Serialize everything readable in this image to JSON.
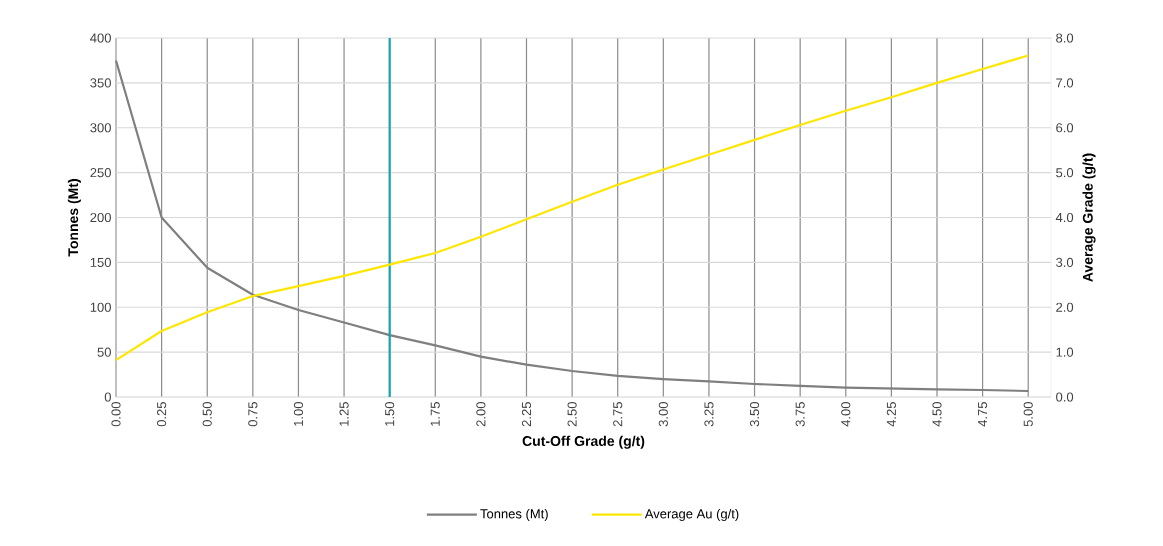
{
  "chart_data": {
    "type": "line",
    "xlabel": "Cut-Off Grade (g/t)",
    "ylabel": "Tonnes (Mt)",
    "y2label": "Average Grade (g/t)",
    "x": [
      0,
      0.25,
      0.5,
      0.75,
      1.0,
      1.25,
      1.5,
      1.75,
      2.0,
      2.25,
      2.5,
      2.75,
      3.0,
      3.25,
      3.5,
      3.75,
      4.0,
      4.25,
      4.5,
      4.75,
      5.0
    ],
    "series": [
      {
        "name": "Tonnes (Mt)",
        "color": "#7f7f7f",
        "values": [
          375,
          200,
          144,
          114,
          97,
          83,
          69,
          57.5,
          45,
          36,
          29,
          23.5,
          20,
          17.5,
          14.5,
          12.5,
          10.5,
          9.5,
          8.5,
          7.8,
          6.7
        ]
      },
      {
        "name": "Average Au (g/t)",
        "color": "#ffe600",
        "axis": "y2",
        "values": [
          0.82,
          1.47,
          1.89,
          2.25,
          2.47,
          2.7,
          2.95,
          3.21,
          3.57,
          3.96,
          4.35,
          4.73,
          5.07,
          5.4,
          5.73,
          6.06,
          6.38,
          6.68,
          7.0,
          7.31,
          7.61
        ]
      }
    ],
    "xlim": [
      0,
      5.125
    ],
    "xticks": [
      {
        "value": 0,
        "label": "0.00"
      },
      {
        "value": 0.25,
        "label": "0.25"
      },
      {
        "value": 0.5,
        "label": "0.50"
      },
      {
        "value": 0.75,
        "label": "0.75"
      },
      {
        "value": 1.0,
        "label": "1.00"
      },
      {
        "value": 1.25,
        "label": "1.25"
      },
      {
        "value": 1.5,
        "label": "1.50"
      },
      {
        "value": 1.75,
        "label": "1.75"
      },
      {
        "value": 2.0,
        "label": "2.00"
      },
      {
        "value": 2.25,
        "label": "2.25"
      },
      {
        "value": 2.5,
        "label": "2.50"
      },
      {
        "value": 2.75,
        "label": "2.75"
      },
      {
        "value": 3.0,
        "label": "3.00"
      },
      {
        "value": 3.25,
        "label": "3.25"
      },
      {
        "value": 3.5,
        "label": "3.50"
      },
      {
        "value": 3.75,
        "label": "3.75"
      },
      {
        "value": 4.0,
        "label": "4.00"
      },
      {
        "value": 4.25,
        "label": "4.25"
      },
      {
        "value": 4.5,
        "label": "4.50"
      },
      {
        "value": 4.75,
        "label": "4.75"
      },
      {
        "value": 5.0,
        "label": "5.00"
      }
    ],
    "ylim": [
      0,
      400
    ],
    "yticks": [
      0,
      50,
      100,
      150,
      200,
      250,
      300,
      350,
      400
    ],
    "y2lim": [
      0,
      8
    ],
    "y2ticks": [
      {
        "value": 0,
        "label": "0.0"
      },
      {
        "value": 1,
        "label": "1.0"
      },
      {
        "value": 2,
        "label": "2.0"
      },
      {
        "value": 3,
        "label": "3.0"
      },
      {
        "value": 4,
        "label": "4.0"
      },
      {
        "value": 5,
        "label": "5.0"
      },
      {
        "value": 6,
        "label": "6.0"
      },
      {
        "value": 7,
        "label": "7.0"
      },
      {
        "value": 8,
        "label": "8.0"
      }
    ],
    "ref_lines": [
      {
        "axis": "x",
        "value": 1.5,
        "color": "#17a2b0"
      }
    ],
    "grid": true,
    "legend": "bottom"
  }
}
